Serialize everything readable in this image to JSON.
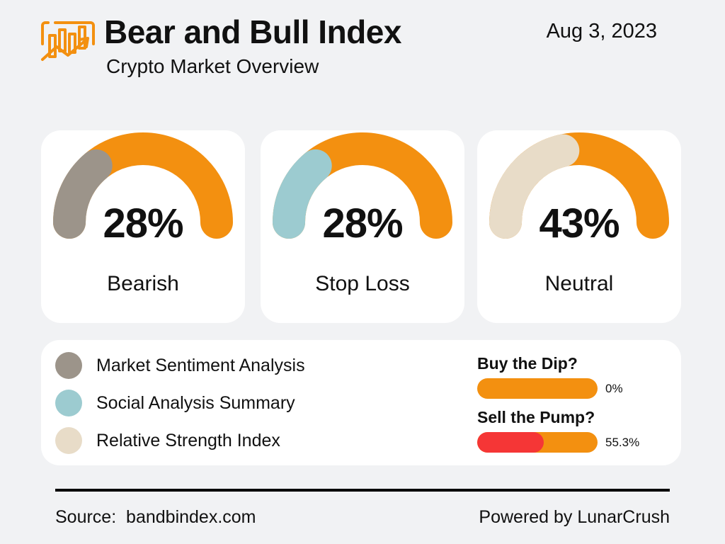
{
  "header": {
    "title": "Bear and Bull Index",
    "subtitle": "Crypto Market Overview",
    "date": "Aug 3, 2023",
    "logo_icon": "bar-chart-trend-icon",
    "accent_color": "#f39010"
  },
  "chart_data": [
    {
      "type": "gauge",
      "value": 28,
      "max": 100,
      "value_label": "28%",
      "label": "Bearish",
      "color": "#9c948a",
      "track_color": "#f39010"
    },
    {
      "type": "gauge",
      "value": 28,
      "max": 100,
      "value_label": "28%",
      "label": "Stop Loss",
      "color": "#9ccbd0",
      "track_color": "#f39010"
    },
    {
      "type": "gauge",
      "value": 43,
      "max": 100,
      "value_label": "43%",
      "label": "Neutral",
      "color": "#e8dcc8",
      "track_color": "#f39010"
    }
  ],
  "legend": [
    {
      "label": "Market Sentiment Analysis",
      "color": "#9c948a"
    },
    {
      "label": "Social Analysis Summary",
      "color": "#9ccbd0"
    },
    {
      "label": "Relative Strength Index",
      "color": "#e8dcc8"
    }
  ],
  "questions": [
    {
      "title": "Buy the Dip?",
      "value": 0,
      "value_label": "0%",
      "fill_color": "#f53636"
    },
    {
      "title": "Sell the Pump?",
      "value": 55.3,
      "value_label": "55.3%",
      "fill_color": "#f53636"
    }
  ],
  "footer": {
    "source": "Source:  bandbindex.com",
    "powered": "Powered by LunarCrush"
  }
}
